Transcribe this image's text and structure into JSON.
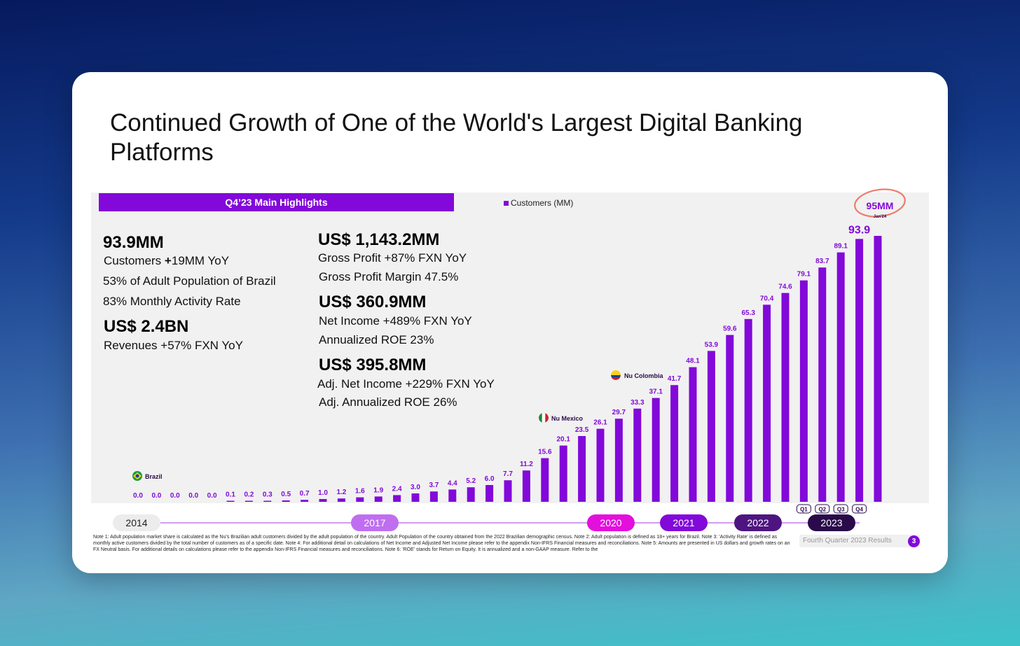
{
  "title": "Continued Growth of One of the World's Largest Digital Banking Platforms",
  "highlights_header": "Q4’23 Main Highlights",
  "legend_label": "Customers (MM)",
  "colors": {
    "purple": "#8209d9",
    "dark_purple": "#2a0a4a",
    "annotation": "#f07a6a"
  },
  "left_stats": {
    "customers_big": "93.9MM",
    "customers_line_prefix": "Customers ",
    "customers_line_bold": "+",
    "customers_line_suffix": "19MM YoY",
    "population_line": "53% of Adult Population of Brazil",
    "activity_line": "83% Monthly Activity Rate",
    "revenue_big": "US$ 2.4BN",
    "revenue_line": "Revenues +57%  FXN YoY"
  },
  "right_stats": {
    "gp_big": "US$ 1,143.2MM",
    "gp_line": "Gross Profit +87%  FXN YoY",
    "gpm_line": "Gross Profit Margin 47.5%",
    "ni_big": "US$ 360.9MM",
    "ni_line": "Net Income +489% FXN YoY",
    "roe_line": "Annualized ROE 23%",
    "adj_big": "US$ 395.8MM",
    "adj_line": "Adj. Net Income +229% FXN YoY",
    "adj_roe_line": "Adj. Annualized ROE 26%"
  },
  "chart_data": {
    "type": "bar",
    "title": "Customers (MM)",
    "series": [
      {
        "name": "Customers (MM)",
        "values": [
          0.0,
          0.0,
          0.0,
          0.0,
          0.0,
          0.1,
          0.2,
          0.3,
          0.5,
          0.7,
          1.0,
          1.2,
          1.6,
          1.9,
          2.4,
          3.0,
          3.7,
          4.4,
          5.2,
          6.0,
          7.7,
          11.2,
          15.6,
          20.1,
          23.5,
          26.1,
          29.7,
          33.3,
          37.1,
          41.7,
          48.1,
          53.9,
          59.6,
          65.3,
          70.4,
          74.6,
          79.1,
          83.7,
          89.1,
          93.9,
          95.0
        ]
      }
    ],
    "value_labels": [
      "0.0",
      "0.0",
      "0.0",
      "0.0",
      "0.0",
      "0.1",
      "0.2",
      "0.3",
      "0.5",
      "0.7",
      "1.0",
      "1.2",
      "1.6",
      "1.9",
      "2.4",
      "3.0",
      "3.7",
      "4.4",
      "5.2",
      "6.0",
      "7.7",
      "11.2",
      "15.6",
      "20.1",
      "23.5",
      "26.1",
      "29.7",
      "33.3",
      "37.1",
      "41.7",
      "48.1",
      "53.9",
      "59.6",
      "65.3",
      "70.4",
      "74.6",
      "79.1",
      "83.7",
      "89.1",
      "93.9",
      ""
    ],
    "ylim": [
      0,
      100
    ],
    "quarter_labels": [
      "Q1",
      "Q2",
      "Q3",
      "Q4"
    ],
    "annotations": {
      "brazil": "Brazil",
      "mexico": "Nu Mexico",
      "colombia": "Nu Colombia",
      "jan_value": "95MM",
      "jan_label": "Jan'24"
    },
    "timeline_years": [
      "2014",
      "2017",
      "2020",
      "2021",
      "2022",
      "2023"
    ]
  },
  "notes": "Note 1: Adult population market share is calculated as the Nu's Brazilian adult customers divided by the adult population of the country. Adult Population of the country obtained from the 2022 Brazilian demographic census. Note 2: Adult population is defined as 18+ years for Brazil. Note 3: 'Activity Rate' is defined as monthly active customers divided by the total number of customers as of a specific date. Note 4: For additional detail on calculations of Net Income and Adjusted Net Income please refer to the appendix Non-IFRS Financial measures and reconciliations. Note 5: Amounts are presented in US dollars and growth rates on an FX Neutral basis. For additional details on calculations please refer to the appendix Non-IFRS Financial measures and reconciliations. Note 6: 'ROE' stands for Return on Equity. It is annualized and a non-GAAP measure. Refer to the",
  "footer_label": "Fourth Quarter 2023 Results",
  "page_number": "3"
}
